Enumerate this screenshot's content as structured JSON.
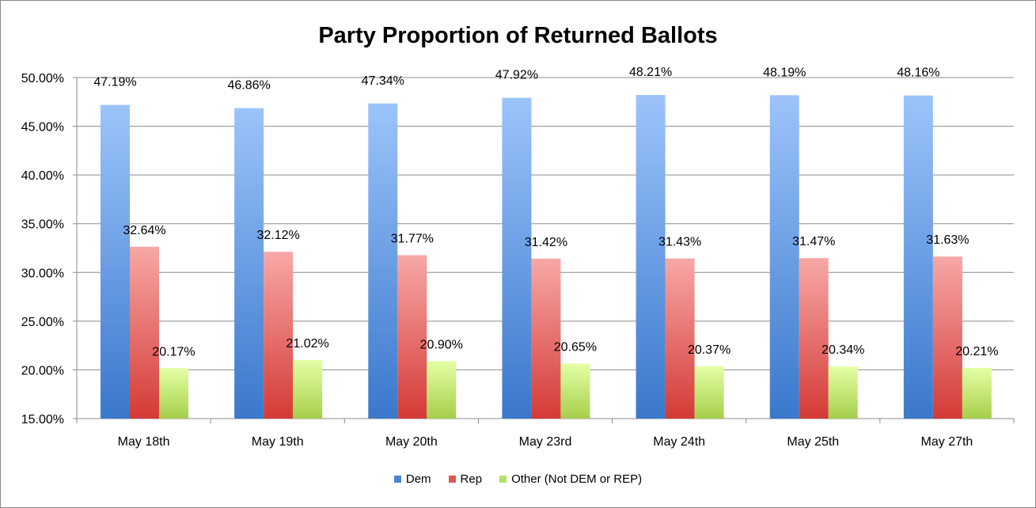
{
  "chart_data": {
    "type": "bar",
    "title": "Party Proportion of Returned Ballots",
    "xlabel": "",
    "ylabel": "",
    "ylim": [
      15,
      50
    ],
    "yticks": [
      "15.00%",
      "20.00%",
      "25.00%",
      "30.00%",
      "35.00%",
      "40.00%",
      "45.00%",
      "50.00%"
    ],
    "grid": true,
    "legend_position": "bottom",
    "categories": [
      "May 18th",
      "May 19th",
      "May 20th",
      "May 23rd",
      "May 24th",
      "May 25th",
      "May 27th"
    ],
    "series": [
      {
        "name": "Dem",
        "color": "#4a86d8",
        "values": [
          47.19,
          46.86,
          47.34,
          47.92,
          48.21,
          48.19,
          48.16
        ]
      },
      {
        "name": "Rep",
        "color": "#e05555",
        "values": [
          32.64,
          32.12,
          31.77,
          31.42,
          31.43,
          31.47,
          31.63
        ]
      },
      {
        "name": "Other (Not DEM or REP)",
        "color": "#b5df6a",
        "values": [
          20.17,
          21.02,
          20.9,
          20.65,
          20.37,
          20.34,
          20.21
        ]
      }
    ]
  }
}
